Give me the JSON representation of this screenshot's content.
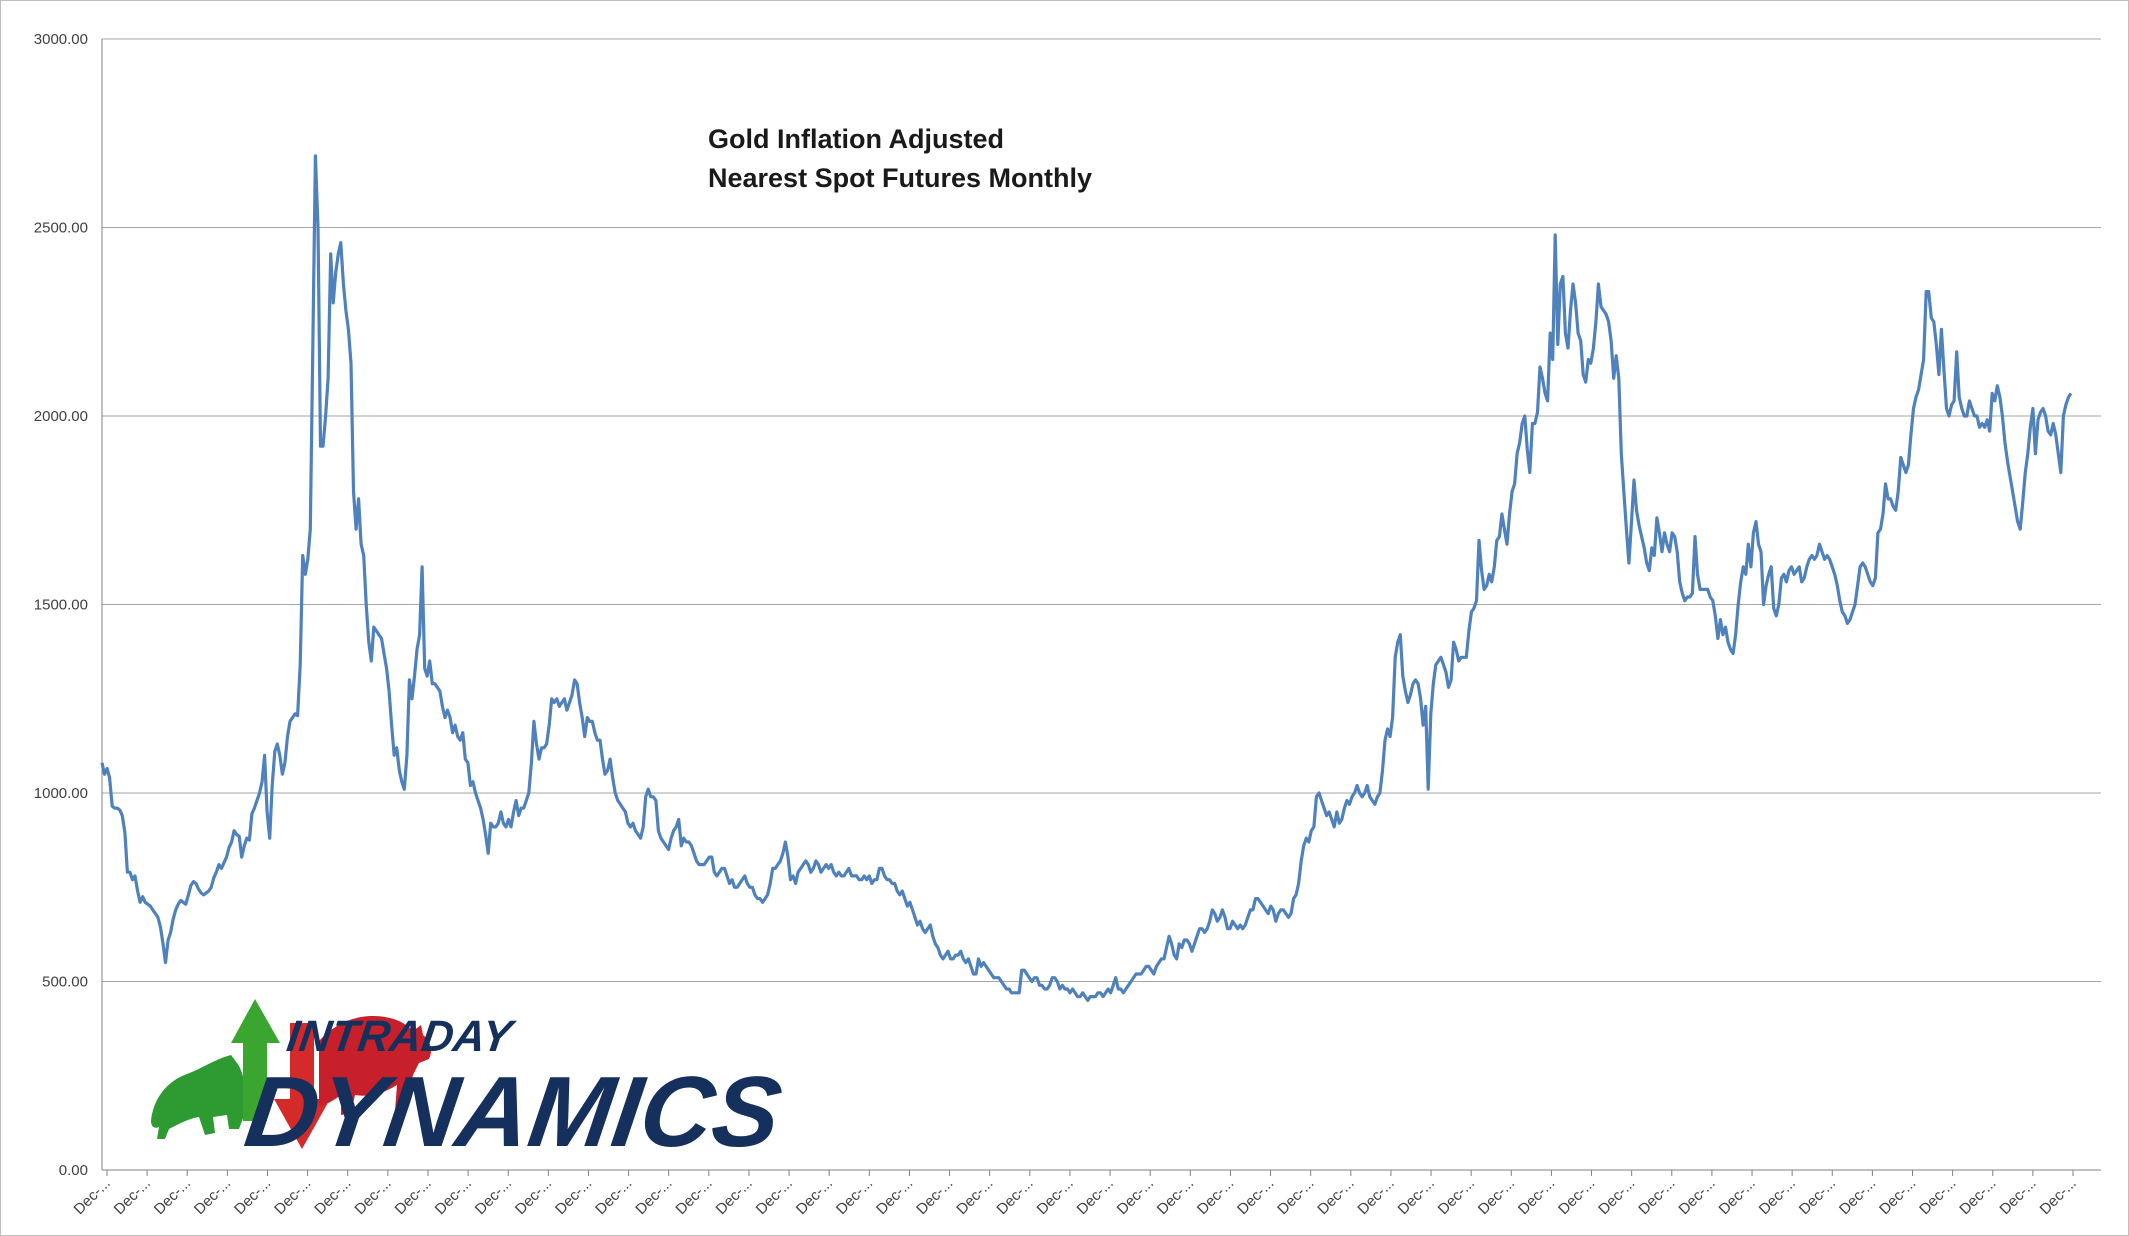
{
  "chart_data": {
    "type": "line",
    "title_lines": [
      "Gold  Inflation Adjusted",
      "Nearest Spot Futures Monthly"
    ],
    "xlabel": "",
    "ylabel": "",
    "ylim": [
      0,
      3000
    ],
    "yticks": [
      "0.00",
      "500.00",
      "1000.00",
      "1500.00",
      "2000.00",
      "2500.00",
      "3000.00"
    ],
    "x_tick_label": "Dec-...",
    "x_tick_count": 50,
    "grid": "horizontal",
    "legend": "none",
    "series": [
      {
        "color": "#4f81bd",
        "values": [
          1080,
          1050,
          1065,
          1040,
          965,
          960,
          960,
          955,
          940,
          895,
          790,
          790,
          770,
          780,
          740,
          710,
          725,
          710,
          705,
          700,
          690,
          680,
          670,
          645,
          600,
          550,
          610,
          630,
          665,
          690,
          705,
          715,
          710,
          705,
          730,
          755,
          765,
          760,
          745,
          735,
          730,
          735,
          740,
          750,
          775,
          790,
          810,
          800,
          815,
          830,
          855,
          870,
          900,
          890,
          885,
          830,
          860,
          880,
          875,
          945,
          960,
          980,
          1000,
          1030,
          1100,
          950,
          880,
          1020,
          1110,
          1130,
          1100,
          1050,
          1080,
          1150,
          1190,
          1200,
          1210,
          1205,
          1340,
          1630,
          1580,
          1620,
          1700,
          2200,
          2690,
          2500,
          1920,
          1920,
          2000,
          2100,
          2430,
          2300,
          2380,
          2430,
          2460,
          2350,
          2280,
          2230,
          2140,
          1800,
          1700,
          1780,
          1660,
          1630,
          1500,
          1400,
          1350,
          1440,
          1430,
          1420,
          1410,
          1370,
          1330,
          1270,
          1180,
          1100,
          1120,
          1060,
          1030,
          1010,
          1100,
          1300,
          1250,
          1310,
          1380,
          1420,
          1600,
          1330,
          1310,
          1350,
          1290,
          1290,
          1280,
          1270,
          1230,
          1200,
          1220,
          1200,
          1160,
          1180,
          1150,
          1140,
          1160,
          1090,
          1080,
          1020,
          1030,
          1000,
          980,
          960,
          930,
          890,
          840,
          920,
          910,
          910,
          920,
          950,
          920,
          910,
          930,
          910,
          950,
          980,
          940,
          960,
          960,
          980,
          1000,
          1080,
          1190,
          1130,
          1090,
          1120,
          1120,
          1130,
          1180,
          1250,
          1240,
          1250,
          1230,
          1240,
          1250,
          1220,
          1240,
          1260,
          1300,
          1290,
          1240,
          1200,
          1150,
          1200,
          1190,
          1190,
          1160,
          1140,
          1140,
          1090,
          1050,
          1060,
          1090,
          1040,
          1000,
          980,
          970,
          960,
          950,
          920,
          910,
          920,
          900,
          890,
          880,
          910,
          990,
          1010,
          990,
          990,
          980,
          900,
          880,
          870,
          860,
          850,
          880,
          900,
          910,
          930,
          860,
          880,
          870,
          870,
          860,
          840,
          820,
          810,
          810,
          810,
          820,
          830,
          830,
          790,
          780,
          790,
          800,
          800,
          780,
          760,
          770,
          750,
          750,
          760,
          770,
          780,
          760,
          750,
          750,
          730,
          720,
          720,
          710,
          720,
          730,
          760,
          800,
          800,
          810,
          820,
          840,
          870,
          830,
          770,
          780,
          760,
          790,
          800,
          810,
          820,
          810,
          790,
          800,
          820,
          810,
          790,
          800,
          810,
          800,
          810,
          790,
          780,
          790,
          780,
          780,
          790,
          800,
          780,
          780,
          780,
          770,
          770,
          780,
          770,
          780,
          760,
          770,
          770,
          800,
          800,
          780,
          770,
          770,
          760,
          760,
          740,
          730,
          740,
          720,
          700,
          710,
          690,
          670,
          650,
          660,
          640,
          630,
          640,
          650,
          620,
          600,
          590,
          570,
          560,
          570,
          580,
          560,
          560,
          570,
          570,
          580,
          560,
          550,
          560,
          540,
          520,
          520,
          560,
          540,
          550,
          540,
          530,
          520,
          510,
          510,
          510,
          500,
          490,
          480,
          480,
          470,
          470,
          470,
          470,
          530,
          530,
          520,
          510,
          500,
          510,
          510,
          490,
          490,
          480,
          480,
          490,
          510,
          510,
          500,
          480,
          490,
          480,
          480,
          470,
          480,
          470,
          460,
          460,
          470,
          460,
          450,
          460,
          460,
          460,
          470,
          470,
          460,
          470,
          480,
          470,
          490,
          510,
          480,
          480,
          470,
          480,
          490,
          500,
          510,
          520,
          520,
          520,
          530,
          540,
          540,
          530,
          520,
          540,
          550,
          560,
          560,
          590,
          620,
          600,
          570,
          560,
          600,
          590,
          610,
          610,
          600,
          580,
          600,
          620,
          640,
          640,
          630,
          640,
          660,
          690,
          680,
          660,
          670,
          690,
          670,
          640,
          640,
          660,
          650,
          640,
          650,
          640,
          650,
          670,
          690,
          690,
          720,
          720,
          710,
          700,
          690,
          680,
          700,
          690,
          660,
          680,
          690,
          690,
          680,
          670,
          680,
          720,
          730,
          760,
          820,
          860,
          880,
          870,
          900,
          910,
          990,
          1000,
          980,
          960,
          940,
          950,
          930,
          910,
          950,
          920,
          930,
          960,
          980,
          970,
          990,
          1000,
          1020,
          1000,
          990,
          1000,
          1020,
          990,
          980,
          970,
          990,
          1000,
          1060,
          1140,
          1170,
          1150,
          1200,
          1360,
          1400,
          1420,
          1310,
          1270,
          1240,
          1260,
          1290,
          1300,
          1290,
          1250,
          1180,
          1230,
          1010,
          1210,
          1290,
          1340,
          1350,
          1360,
          1340,
          1320,
          1280,
          1300,
          1400,
          1380,
          1350,
          1360,
          1360,
          1360,
          1430,
          1480,
          1490,
          1510,
          1670,
          1590,
          1540,
          1550,
          1580,
          1560,
          1600,
          1670,
          1680,
          1740,
          1700,
          1660,
          1740,
          1800,
          1820,
          1900,
          1930,
          1980,
          2000,
          1910,
          1850,
          1980,
          1980,
          2010,
          2130,
          2100,
          2060,
          2040,
          2220,
          2150,
          2480,
          2190,
          2350,
          2370,
          2220,
          2180,
          2280,
          2350,
          2300,
          2220,
          2200,
          2110,
          2090,
          2150,
          2140,
          2180,
          2250,
          2350,
          2290,
          2280,
          2270,
          2250,
          2200,
          2100,
          2160,
          2100,
          1900,
          1800,
          1700,
          1610,
          1720,
          1830,
          1750,
          1710,
          1680,
          1650,
          1610,
          1590,
          1650,
          1630,
          1730,
          1690,
          1640,
          1690,
          1660,
          1640,
          1690,
          1680,
          1640,
          1560,
          1530,
          1510,
          1520,
          1520,
          1530,
          1680,
          1580,
          1540,
          1540,
          1540,
          1540,
          1520,
          1510,
          1470,
          1410,
          1460,
          1420,
          1440,
          1400,
          1380,
          1370,
          1420,
          1500,
          1560,
          1600,
          1580,
          1660,
          1600,
          1690,
          1720,
          1660,
          1640,
          1500,
          1550,
          1580,
          1600,
          1490,
          1470,
          1500,
          1570,
          1580,
          1560,
          1590,
          1600,
          1580,
          1590,
          1600,
          1560,
          1570,
          1600,
          1620,
          1630,
          1620,
          1630,
          1660,
          1640,
          1620,
          1630,
          1620,
          1600,
          1580,
          1550,
          1510,
          1480,
          1470,
          1450,
          1460,
          1480,
          1500,
          1550,
          1600,
          1610,
          1600,
          1580,
          1560,
          1550,
          1570,
          1690,
          1700,
          1740,
          1820,
          1780,
          1780,
          1760,
          1750,
          1800,
          1890,
          1870,
          1850,
          1870,
          1950,
          2020,
          2050,
          2070,
          2110,
          2150,
          2330,
          2330,
          2260,
          2250,
          2190,
          2110,
          2230,
          2120,
          2020,
          2000,
          2030,
          2040,
          2170,
          2050,
          2020,
          2000,
          2000,
          2040,
          2020,
          2000,
          2000,
          1970,
          1980,
          1970,
          1990,
          1960,
          2060,
          2040,
          2080,
          2050,
          2000,
          1930,
          1880,
          1840,
          1800,
          1760,
          1720,
          1700,
          1770,
          1850,
          1900,
          1970,
          2020,
          1900,
          1990,
          2010,
          2020,
          2000,
          1960,
          1950,
          1980,
          1950,
          1900,
          1850,
          2000,
          2030,
          2050,
          2060
        ]
      }
    ]
  },
  "logo": {
    "line1": "INTRADAY",
    "line2": "DYNAMICS",
    "up_color": "#3aa52f",
    "down_color": "#d42a2a",
    "bull_color": "#2e9a32",
    "bear_color": "#c8202a",
    "text_color": "#15305c",
    "icons": [
      "bull-icon",
      "up-arrow-icon",
      "down-arrow-icon",
      "bear-icon"
    ]
  }
}
